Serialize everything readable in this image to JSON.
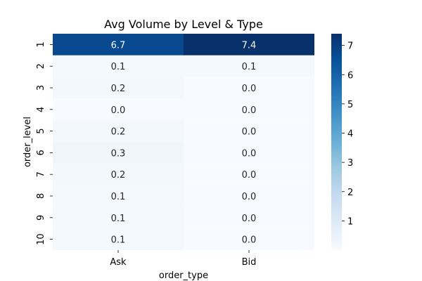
{
  "chart_data": {
    "type": "heatmap",
    "title": "Avg Volume by Level & Type",
    "xlabel": "order_type",
    "ylabel": "order_level",
    "x_categories": [
      "Ask",
      "Bid"
    ],
    "y_categories": [
      "1",
      "2",
      "3",
      "4",
      "5",
      "6",
      "7",
      "8",
      "9",
      "10"
    ],
    "values": [
      [
        6.7,
        7.4
      ],
      [
        0.1,
        0.1
      ],
      [
        0.2,
        0.0
      ],
      [
        0.0,
        0.0
      ],
      [
        0.2,
        0.0
      ],
      [
        0.3,
        0.0
      ],
      [
        0.2,
        0.0
      ],
      [
        0.1,
        0.0
      ],
      [
        0.1,
        0.0
      ],
      [
        0.1,
        0.0
      ]
    ],
    "colorbar": {
      "ticks": [
        1,
        2,
        3,
        4,
        5,
        6,
        7
      ],
      "range": [
        0,
        7.4
      ],
      "colormap": "Blues",
      "low_color": "#f7fbff",
      "high_color": "#08306b"
    },
    "grid": false,
    "legend": "colorbar-right"
  }
}
